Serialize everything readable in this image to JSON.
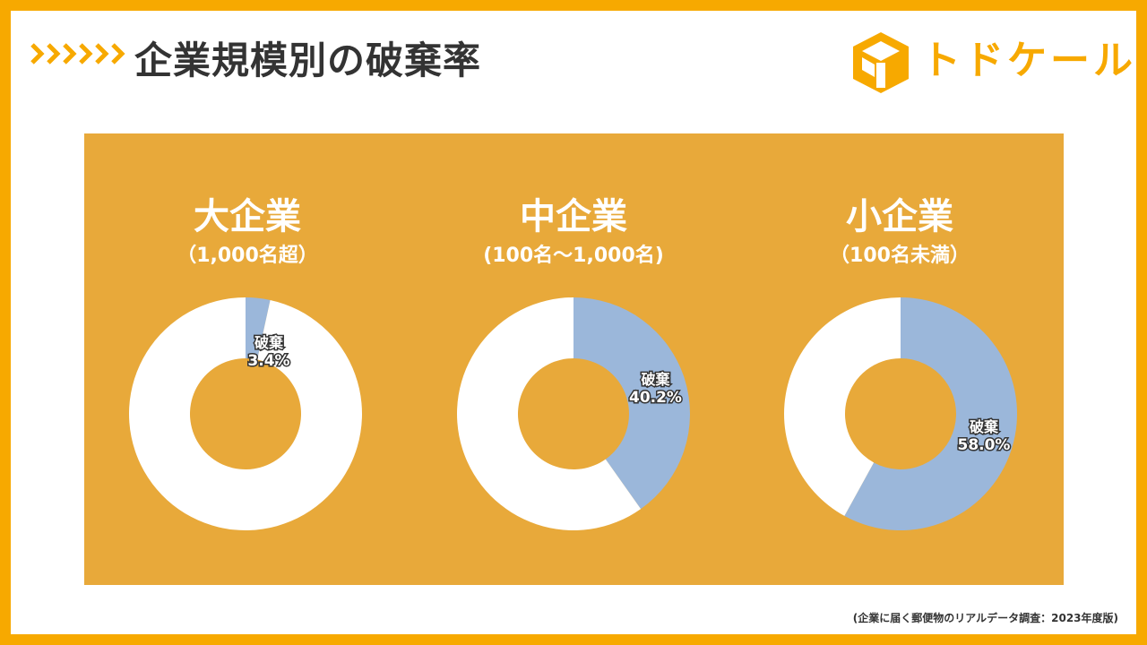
{
  "header": {
    "title": "企業規模別の破棄率",
    "chevron_icon": "chevron-right-icon",
    "accent_color": "#f7a900"
  },
  "logo": {
    "text": "トドケール",
    "icon": "box-logo-icon"
  },
  "colors": {
    "panel": "#e8a93a",
    "discard": "#9bb7da",
    "other": "#ffffff"
  },
  "chart_data": [
    {
      "type": "pie",
      "title": "大企業",
      "subtitle": "（1,000名超）",
      "slices": [
        {
          "label": "破棄",
          "value": 3.4,
          "label_value": "3.4%"
        },
        {
          "label": "",
          "value": 96.6
        }
      ]
    },
    {
      "type": "pie",
      "title": "中企業",
      "subtitle": "(100名～1,000名)",
      "slices": [
        {
          "label": "破棄",
          "value": 40.2,
          "label_value": "40.2%"
        },
        {
          "label": "",
          "value": 59.8
        }
      ]
    },
    {
      "type": "pie",
      "title": "小企業",
      "subtitle": "（100名未満）",
      "slices": [
        {
          "label": "破棄",
          "value": 58.0,
          "label_value": "58.0%"
        },
        {
          "label": "",
          "value": 42.0
        }
      ]
    }
  ],
  "footnote": "(企業に届く郵便物のリアルデータ調査：2023年度版)"
}
